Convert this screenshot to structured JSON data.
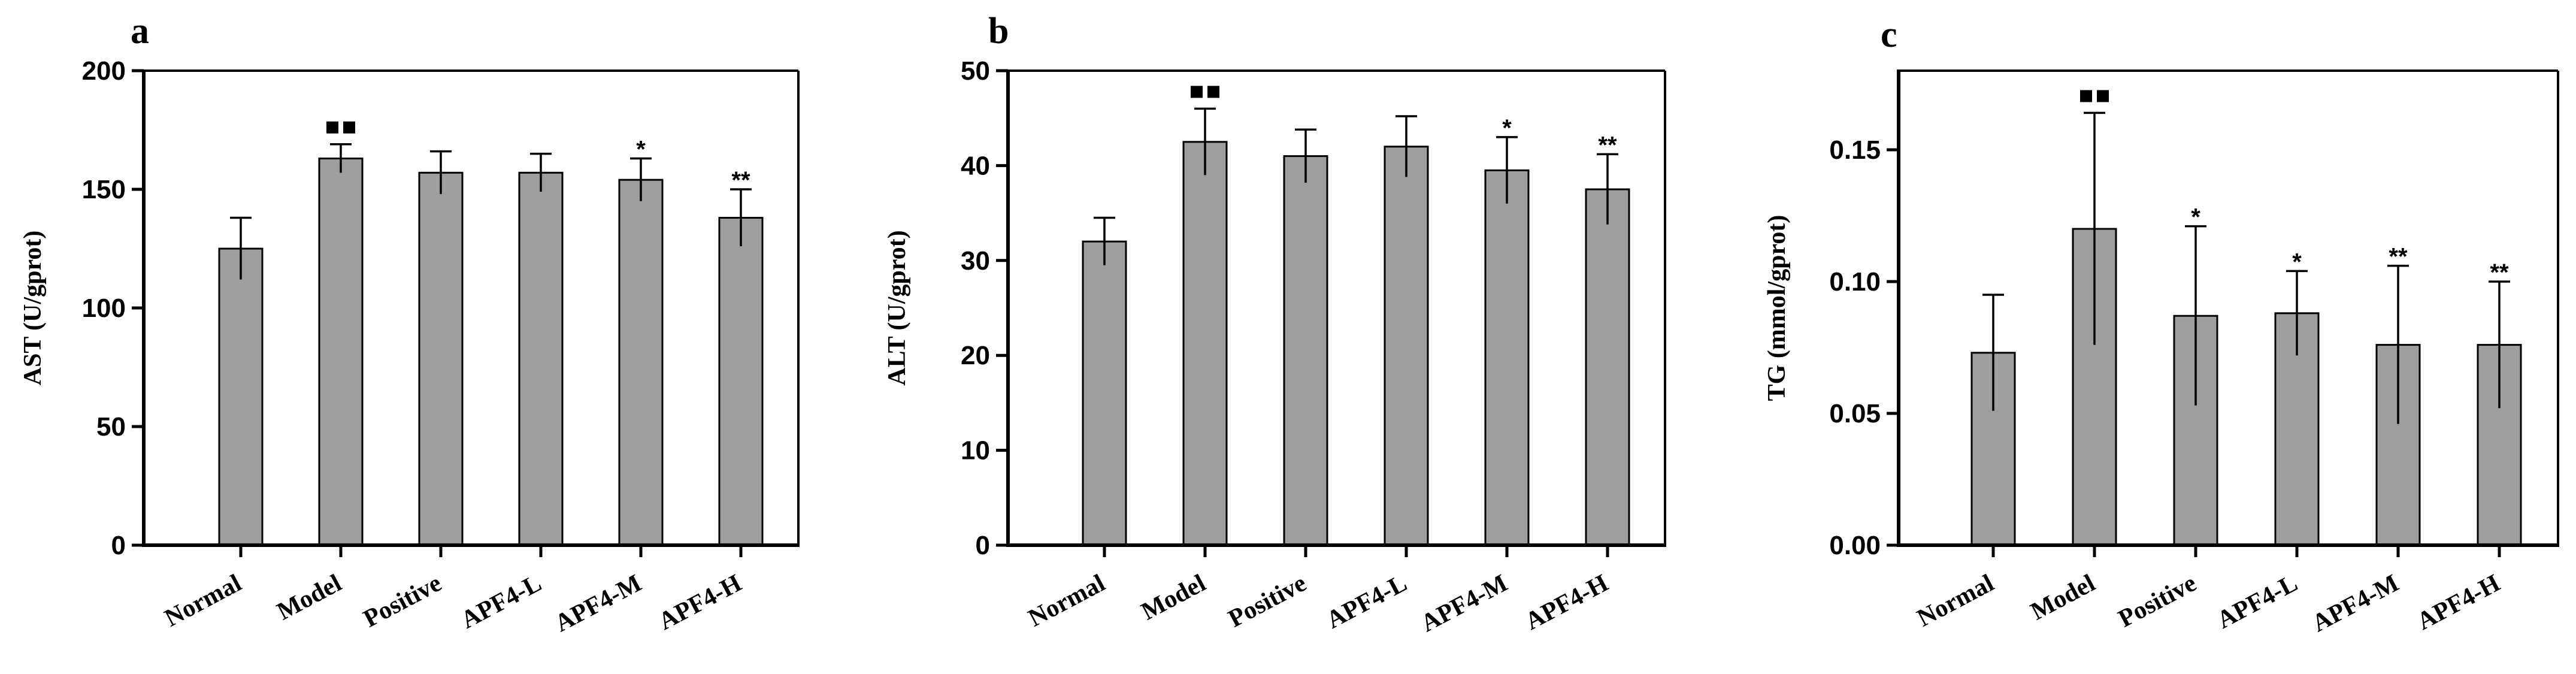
{
  "chart_data": [
    {
      "type": "bar",
      "panel": "a",
      "ylabel": "AST (U/gprot)",
      "ylim": [
        0,
        200
      ],
      "yticks": [
        "0",
        "50",
        "100",
        "150",
        "200"
      ],
      "categories": [
        "Normal",
        "Model",
        "Positive",
        "APF4-L",
        "APF4-M",
        "APF4-H"
      ],
      "values": [
        125,
        163,
        157,
        157,
        154,
        138
      ],
      "errors": [
        13,
        6,
        9,
        8,
        9,
        12
      ],
      "annotations": [
        "",
        "■■",
        "",
        "",
        "*",
        "**"
      ],
      "grid": false
    },
    {
      "type": "bar",
      "panel": "b",
      "ylabel": "ALT (U/gprot)",
      "ylim": [
        0,
        50
      ],
      "yticks": [
        "0",
        "10",
        "20",
        "30",
        "40",
        "50"
      ],
      "categories": [
        "Normal",
        "Model",
        "Positive",
        "APF4-L",
        "APF4-M",
        "APF4-H"
      ],
      "values": [
        32,
        42.5,
        41,
        42,
        39.5,
        37.5
      ],
      "errors": [
        2.5,
        3.5,
        2.8,
        3.2,
        3.5,
        3.7
      ],
      "annotations": [
        "",
        "■■",
        "",
        "",
        "*",
        "**"
      ],
      "grid": false
    },
    {
      "type": "bar",
      "panel": "c",
      "ylabel": "TG (mmol/gprot)",
      "ylim": [
        0,
        0.18
      ],
      "yticks": [
        "0.00",
        "0.05",
        "0.10",
        "0.15"
      ],
      "ytick_values": [
        0,
        0.05,
        0.1,
        0.15
      ],
      "categories": [
        "Normal",
        "Model",
        "Positive",
        "APF4-L",
        "APF4-M",
        "APF4-H"
      ],
      "values": [
        0.073,
        0.12,
        0.087,
        0.088,
        0.076,
        0.076
      ],
      "errors": [
        0.022,
        0.044,
        0.034,
        0.016,
        0.03,
        0.024
      ],
      "annotations": [
        "",
        "■■",
        "*",
        "*",
        "**",
        "**"
      ],
      "grid": false
    }
  ]
}
